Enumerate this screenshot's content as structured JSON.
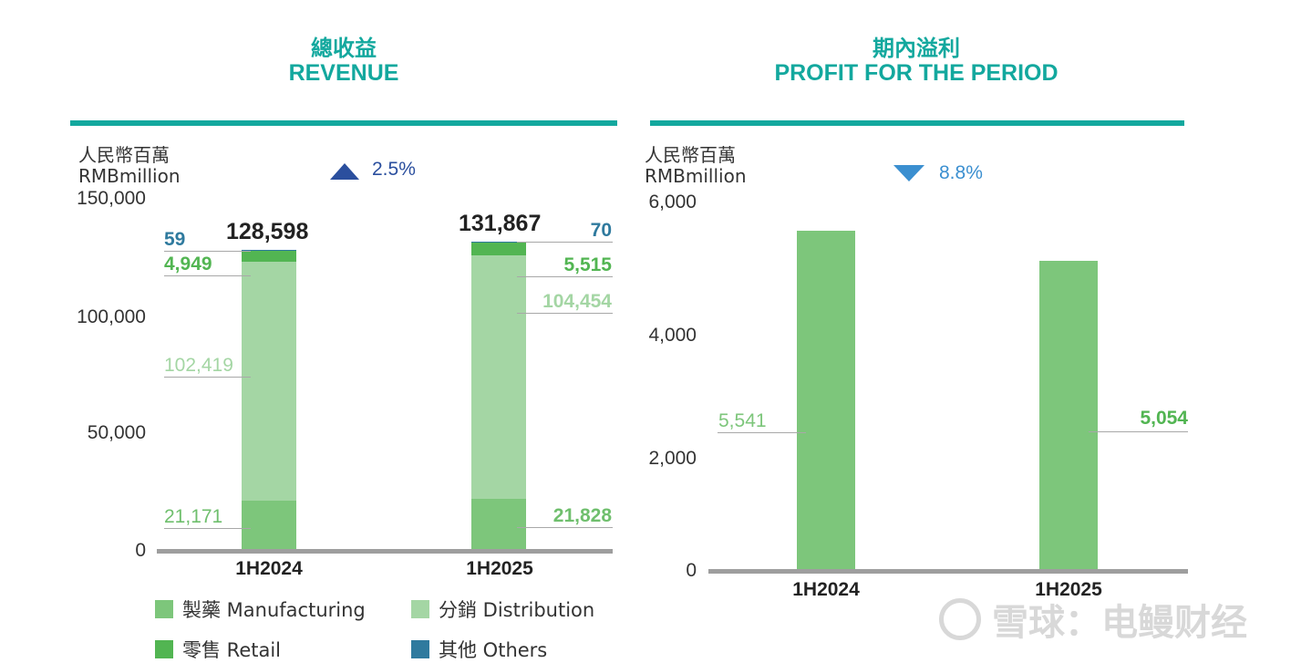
{
  "chart_data": [
    {
      "type": "bar",
      "stacked": true,
      "title": "總收益",
      "subtitle": "REVENUE",
      "ylabel": "人民幣百萬",
      "ylabel_en": "RMBmillion",
      "categories": [
        "1H2024",
        "1H2025"
      ],
      "ylim": [
        0,
        150000
      ],
      "yticks": [
        "0",
        "50,000",
        "100,000",
        "150,000"
      ],
      "change": {
        "direction": "up",
        "text": "2.5%"
      },
      "totals": [
        128598,
        131867
      ],
      "total_labels": [
        "128,598",
        "131,867"
      ],
      "series": [
        {
          "name": "製藥 Manufacturing",
          "values": [
            21171,
            21828
          ],
          "labels": [
            "21,171",
            "21,828"
          ],
          "color": "#7dc67b"
        },
        {
          "name": "分銷 Distribution",
          "values": [
            102419,
            104454
          ],
          "labels": [
            "102,419",
            "104,454"
          ],
          "color": "#a4d6a4"
        },
        {
          "name": "零售 Retail",
          "values": [
            4949,
            5515
          ],
          "labels": [
            "4,949",
            "5,515"
          ],
          "color": "#52b552"
        },
        {
          "name": "其他 Others",
          "values": [
            59,
            70
          ],
          "labels": [
            "59",
            "70"
          ],
          "color": "#2f7a9e"
        }
      ],
      "legend": [
        {
          "name": "製藥 Manufacturing",
          "color": "#7dc67b"
        },
        {
          "name": "分銷 Distribution",
          "color": "#a4d6a4"
        },
        {
          "name": "零售 Retail",
          "color": "#52b552"
        },
        {
          "name": "其他 Others",
          "color": "#2f7a9e"
        }
      ],
      "legend_position": "bottom"
    },
    {
      "type": "bar",
      "title": "期內溢利",
      "subtitle": "PROFIT FOR THE PERIOD",
      "ylabel": "人民幣百萬",
      "ylabel_en": "RMBmillion",
      "categories": [
        "1H2024",
        "1H2025"
      ],
      "ylim": [
        0,
        6000
      ],
      "yticks": [
        "0",
        "2,000",
        "4,000",
        "6,000"
      ],
      "change": {
        "direction": "down",
        "text": "8.8%"
      },
      "series": [
        {
          "name": "",
          "values": [
            5541,
            5054
          ],
          "labels": [
            "5,541",
            "5,054"
          ],
          "color": "#7dc67b"
        }
      ]
    }
  ],
  "colors": {
    "accent": "#13a89e",
    "up_arrow": "#2b4f9e",
    "down_arrow": "#3b8fd0",
    "axis": "#9e9e9e",
    "leader": "#a8a8a8"
  },
  "watermark": {
    "text": "雪球：电鳗财经",
    "icon": "snowball-logo-icon"
  }
}
